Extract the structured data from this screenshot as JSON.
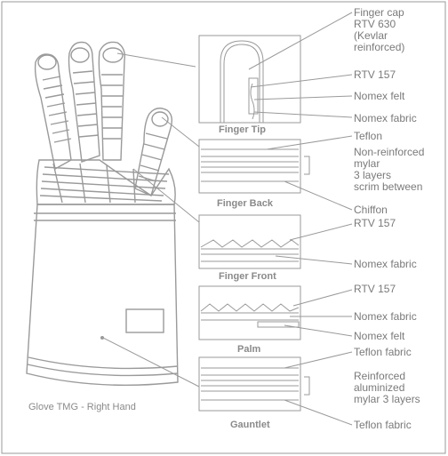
{
  "title": "Glove TMG - Right Hand",
  "panels": {
    "finger_tip": "Finger Tip",
    "finger_back": "Finger Back",
    "finger_front": "Finger Front",
    "palm": "Palm",
    "gauntlet": "Gauntlet"
  },
  "callouts": {
    "finger_cap": [
      "Finger cap",
      "RTV 630",
      "(Kevlar",
      "reinforced)"
    ],
    "rtv157_a": "RTV 157",
    "nomex_felt_a": "Nomex felt",
    "nomex_fabric_a": "Nomex fabric",
    "teflon": "Teflon",
    "mylar": [
      "Non-reinforced",
      "mylar",
      "3 layers",
      "scrim between"
    ],
    "chiffon": "Chiffon",
    "rtv157_b": "RTV 157",
    "nomex_fabric_b": "Nomex fabric",
    "rtv157_c": "RTV 157",
    "nomex_fabric_c": "Nomex fabric",
    "nomex_felt_c": "Nomex felt",
    "teflon_fabric_a": "Teflon fabric",
    "alum_mylar": [
      "Reinforced",
      "aluminized",
      "mylar 3 layers"
    ],
    "teflon_fabric_b": "Teflon fabric"
  },
  "colors": {
    "ink": "#8a8a8a",
    "line": "#9a9a9a",
    "background": "#ffffff"
  }
}
